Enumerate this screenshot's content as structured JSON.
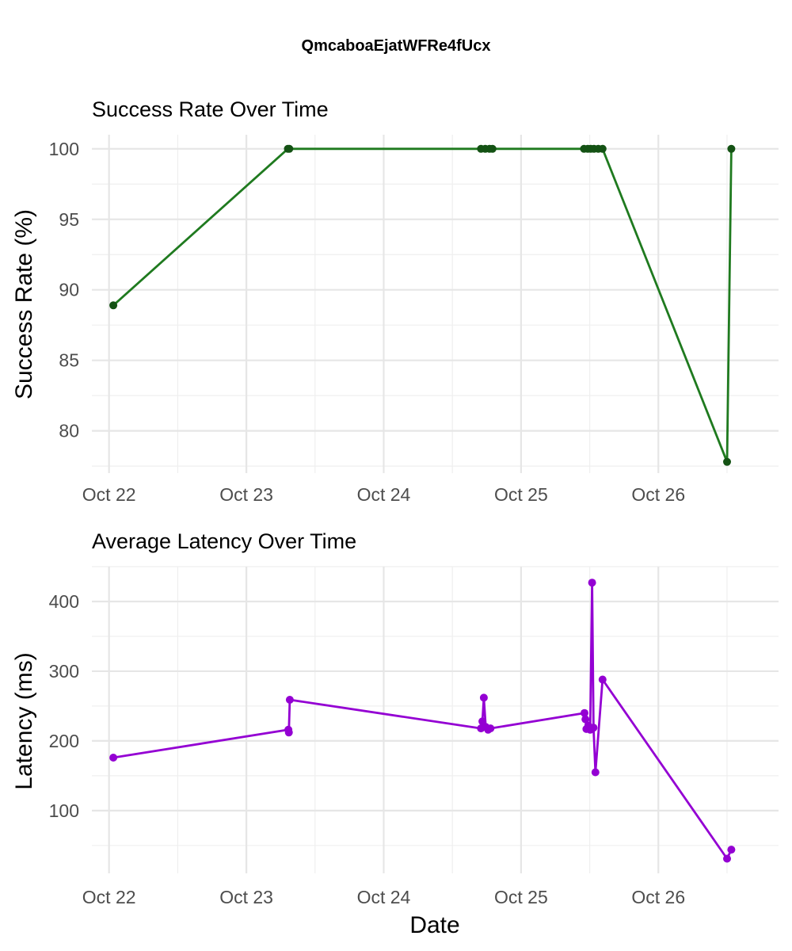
{
  "page": {
    "title": "QmcaboaEjatWFRe4fUcx"
  },
  "chart_data": [
    {
      "type": "line",
      "title": "Success Rate Over Time",
      "ylabel": "Success Rate (%)",
      "xlabel": "",
      "ylim": [
        77.0,
        101.0
      ],
      "y_ticks": [
        80,
        85,
        90,
        95,
        100
      ],
      "x_ticks": [
        "Oct 22",
        "Oct 23",
        "Oct 24",
        "Oct 25",
        "Oct 26"
      ],
      "xlim": [
        "2024-10-21 21:00",
        "2024-10-26 21:00"
      ],
      "grid": true,
      "series": [
        {
          "color": "#1f7a1f",
          "point_color": "#145214",
          "x": [
            "2024-10-22 00:45",
            "2024-10-23 07:15",
            "2024-10-23 07:30",
            "2024-10-24 17:00",
            "2024-10-24 17:45",
            "2024-10-24 18:30",
            "2024-10-24 19:00",
            "2024-10-25 11:00",
            "2024-10-25 11:40",
            "2024-10-25 12:10",
            "2024-10-25 12:45",
            "2024-10-25 13:30",
            "2024-10-25 14:15",
            "2024-10-26 12:00",
            "2024-10-26 12:45"
          ],
          "values": [
            88.9,
            100,
            100,
            100,
            100,
            100,
            100,
            100,
            100,
            100,
            100,
            100,
            100,
            77.8,
            100
          ]
        }
      ]
    },
    {
      "type": "line",
      "title": "Average Latency Over Time",
      "ylabel": "Latency (ms)",
      "xlabel": "Date",
      "ylim": [
        10,
        450
      ],
      "y_ticks": [
        100,
        200,
        300,
        400
      ],
      "x_ticks": [
        "Oct 22",
        "Oct 23",
        "Oct 24",
        "Oct 25",
        "Oct 26"
      ],
      "xlim": [
        "2024-10-21 21:00",
        "2024-10-26 21:00"
      ],
      "grid": true,
      "series": [
        {
          "color": "#9400d3",
          "point_color": "#9400d3",
          "x": [
            "2024-10-22 00:45",
            "2024-10-23 07:20",
            "2024-10-23 07:25",
            "2024-10-23 07:35",
            "2024-10-24 17:00",
            "2024-10-24 17:15",
            "2024-10-24 17:30",
            "2024-10-24 17:50",
            "2024-10-24 18:15",
            "2024-10-24 18:40",
            "2024-10-25 11:05",
            "2024-10-25 11:15",
            "2024-10-25 11:25",
            "2024-10-25 11:45",
            "2024-10-25 12:05",
            "2024-10-25 12:25",
            "2024-10-25 12:40",
            "2024-10-25 13:00",
            "2024-10-25 14:15",
            "2024-10-26 12:00",
            "2024-10-26 12:45"
          ],
          "values": [
            176,
            216,
            212,
            259,
            218,
            228,
            262,
            220,
            216,
            218,
            240,
            231,
            217,
            222,
            216,
            427,
            219,
            155,
            288,
            31,
            44
          ]
        }
      ]
    }
  ]
}
